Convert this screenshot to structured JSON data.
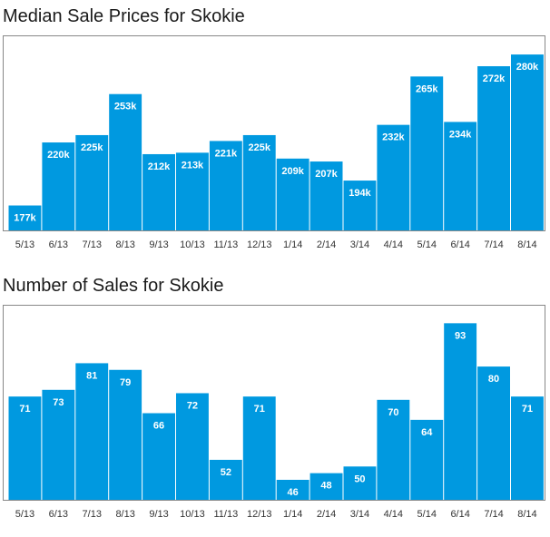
{
  "chart_data": [
    {
      "type": "bar",
      "title": "Median Sale Prices for Skokie",
      "categories": [
        "5/13",
        "6/13",
        "7/13",
        "8/13",
        "9/13",
        "10/13",
        "11/13",
        "12/13",
        "1/14",
        "2/14",
        "3/14",
        "4/14",
        "5/14",
        "6/14",
        "7/14",
        "8/14"
      ],
      "values": [
        177,
        220,
        225,
        253,
        212,
        213,
        221,
        225,
        209,
        207,
        194,
        232,
        265,
        234,
        272,
        280
      ],
      "data_labels": [
        "177k",
        "220k",
        "225k",
        "253k",
        "212k",
        "213k",
        "221k",
        "225k",
        "209k",
        "207k",
        "194k",
        "232k",
        "265k",
        "234k",
        "272k",
        "280k"
      ],
      "ylim": [
        160,
        285
      ],
      "grid": false,
      "bar_color": "#0099e0",
      "frame_color": "#888888"
    },
    {
      "type": "bar",
      "title": "Number of Sales for Skokie",
      "categories": [
        "5/13",
        "6/13",
        "7/13",
        "8/13",
        "9/13",
        "10/13",
        "11/13",
        "12/13",
        "1/14",
        "2/14",
        "3/14",
        "4/14",
        "5/14",
        "6/14",
        "7/14",
        "8/14"
      ],
      "values": [
        71,
        73,
        81,
        79,
        66,
        72,
        52,
        71,
        46,
        48,
        50,
        70,
        64,
        93,
        80,
        71
      ],
      "data_labels": [
        "71",
        "73",
        "81",
        "79",
        "66",
        "72",
        "52",
        "71",
        "46",
        "48",
        "50",
        "70",
        "64",
        "93",
        "80",
        "71"
      ],
      "ylim": [
        40,
        95
      ],
      "grid": false,
      "bar_color": "#0099e0",
      "frame_color": "#888888"
    }
  ]
}
